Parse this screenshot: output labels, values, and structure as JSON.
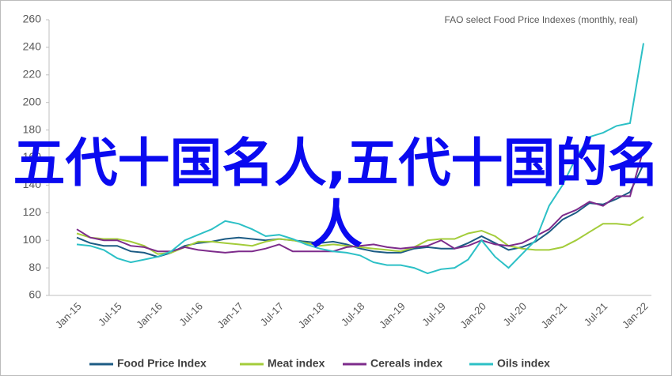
{
  "chart_data": {
    "type": "line",
    "subtitle": "FAO select Food Price Indexes (monthly, real)",
    "annotation": "五代十国名人,五代十国的名人",
    "categories": [
      "Jan-15",
      null,
      null,
      "Jul-15",
      null,
      null,
      "Jan-16",
      null,
      null,
      "Jul-16",
      null,
      null,
      "Jan-17",
      null,
      null,
      "Jul-17",
      null,
      null,
      "Jan-18",
      null,
      null,
      "Jul-18",
      null,
      null,
      "Jan-19",
      null,
      null,
      "Jul-19",
      null,
      null,
      "Jan-20",
      null,
      null,
      "Jul-20",
      null,
      null,
      "Jan-21",
      null,
      null,
      "Jul-21",
      null,
      null,
      "Jan-22"
    ],
    "ylim": [
      60,
      260
    ],
    "yticks": [
      60,
      80,
      100,
      120,
      140,
      160,
      180,
      200,
      220,
      240,
      260
    ],
    "grid": false,
    "legend": "bottom",
    "series": [
      {
        "name": "Food Price Index",
        "color": "#1c5b84",
        "values": [
          102,
          98,
          96,
          96,
          92,
          91,
          88,
          91,
          96,
          98,
          99,
          101,
          102,
          101,
          100,
          101,
          100,
          99,
          98,
          99,
          97,
          94,
          92,
          91,
          91,
          94,
          95,
          94,
          94,
          98,
          103,
          98,
          93,
          95,
          99,
          106,
          115,
          120,
          127,
          126,
          130,
          135,
          155
        ]
      },
      {
        "name": "Meat index",
        "color": "#a3cc3a",
        "values": [
          105,
          102,
          101,
          101,
          99,
          96,
          90,
          91,
          95,
          99,
          99,
          98,
          97,
          96,
          99,
          101,
          100,
          98,
          96,
          97,
          96,
          95,
          94,
          93,
          92,
          95,
          100,
          101,
          101,
          105,
          107,
          103,
          96,
          94,
          93,
          93,
          95,
          100,
          106,
          112,
          112,
          111,
          117
        ]
      },
      {
        "name": "Cereals index",
        "color": "#7d2b8b",
        "values": [
          108,
          102,
          100,
          100,
          96,
          95,
          92,
          92,
          95,
          93,
          92,
          91,
          92,
          92,
          94,
          97,
          92,
          92,
          92,
          92,
          95,
          96,
          97,
          95,
          94,
          95,
          96,
          100,
          94,
          96,
          100,
          97,
          96,
          98,
          103,
          108,
          118,
          122,
          128,
          125,
          132,
          132,
          166
        ]
      },
      {
        "name": "Oils index",
        "color": "#2cc0c6",
        "values": [
          97,
          96,
          93,
          87,
          84,
          86,
          88,
          92,
          100,
          104,
          108,
          114,
          112,
          108,
          103,
          104,
          101,
          97,
          94,
          92,
          91,
          89,
          84,
          82,
          82,
          80,
          76,
          79,
          80,
          86,
          100,
          88,
          80,
          90,
          100,
          125,
          140,
          160,
          175,
          178,
          183,
          185,
          243
        ]
      }
    ]
  }
}
